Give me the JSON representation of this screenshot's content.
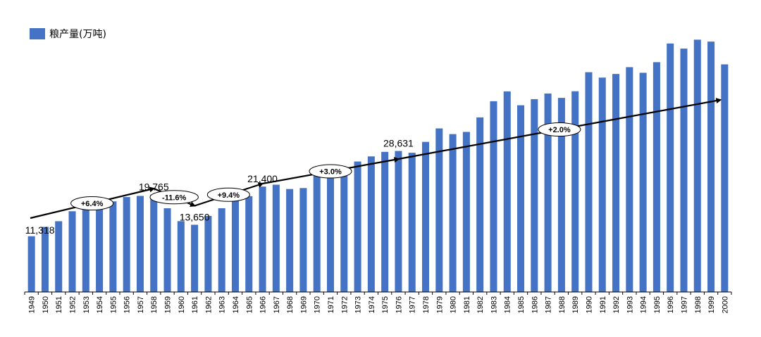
{
  "chart_data": {
    "type": "bar",
    "legend": {
      "label": "粮产量(万吨)",
      "position": "top-left"
    },
    "color": "#4472C4",
    "ylim": [
      0,
      55000
    ],
    "categories": [
      "1949",
      "1950",
      "1951",
      "1952",
      "1953",
      "1954",
      "1955",
      "1956",
      "1957",
      "1958",
      "1959",
      "1960",
      "1961",
      "1962",
      "1963",
      "1964",
      "1965",
      "1966",
      "1967",
      "1968",
      "1969",
      "1970",
      "1971",
      "1972",
      "1973",
      "1974",
      "1975",
      "1976",
      "1977",
      "1978",
      "1979",
      "1980",
      "1981",
      "1982",
      "1983",
      "1984",
      "1985",
      "1986",
      "1987",
      "1988",
      "1989",
      "1990",
      "1991",
      "1992",
      "1993",
      "1994",
      "1995",
      "1996",
      "1997",
      "1998",
      "1999",
      "2000"
    ],
    "values": [
      11318,
      13213,
      14369,
      16392,
      16683,
      16952,
      18394,
      19275,
      19505,
      19765,
      17000,
      14385,
      13650,
      15441,
      17000,
      18750,
      19453,
      21400,
      21782,
      20906,
      21097,
      23996,
      25014,
      24048,
      26494,
      27527,
      28452,
      28631,
      28273,
      30477,
      33212,
      32056,
      32502,
      35450,
      38728,
      40731,
      37911,
      39151,
      40298,
      39408,
      40755,
      44624,
      43529,
      44266,
      45649,
      44510,
      46662,
      50454,
      49417,
      51230,
      50839,
      46218
    ],
    "data_labels": [
      {
        "category": "1949",
        "text": "11,318"
      },
      {
        "category": "1958",
        "text": "19,765"
      },
      {
        "category": "1961",
        "text": "13,650"
      },
      {
        "category": "1966",
        "text": "21,400"
      },
      {
        "category": "1976",
        "text": "28,631"
      }
    ],
    "growth_annotations": [
      {
        "text": "+6.4%",
        "from_year": "1949",
        "to_year": "1958",
        "start_value": 15000,
        "end_value": 21000
      },
      {
        "text": "-11.6%",
        "from_year": "1958",
        "to_year": "1961",
        "start_value": 21000,
        "end_value": 17500
      },
      {
        "text": "+9.4%",
        "from_year": "1961",
        "to_year": "1966",
        "start_value": 17500,
        "end_value": 22000
      },
      {
        "text": "+3.0%",
        "from_year": "1966",
        "to_year": "1976",
        "start_value": 22000,
        "end_value": 27000
      },
      {
        "text": "+2.0%",
        "from_year": "1976",
        "to_year": "2000",
        "start_value": 27000,
        "end_value": 39000
      }
    ]
  }
}
